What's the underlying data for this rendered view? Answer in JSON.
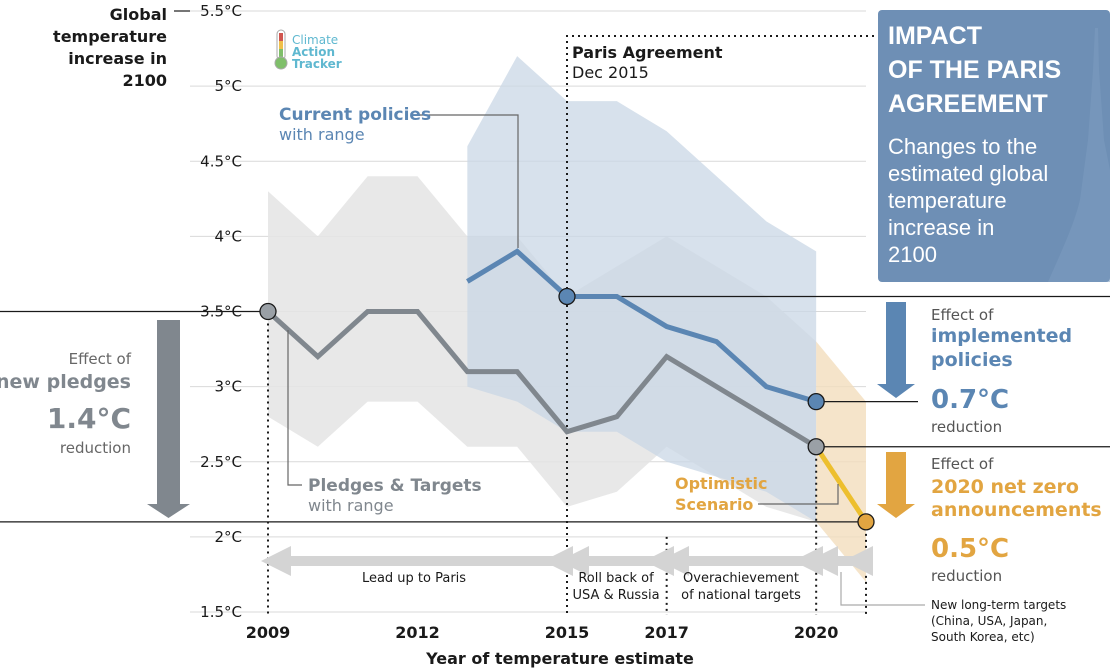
{
  "colors": {
    "blue": "#5b86b3",
    "blue_band": "#c9d7e6",
    "grey": "#80878e",
    "grey_band": "#e4e4e4",
    "orange": "#e2a541",
    "orange_line": "#edbf2e",
    "orange_band": "#f2ddbd",
    "box_bg": "#6e8fb5",
    "period_bar": "#d4d4d4"
  },
  "logo": {
    "line1": "Climate",
    "line2": "Action",
    "line3": "Tracker"
  },
  "title_box": {
    "title_lines": [
      "IMPACT",
      "OF THE PARIS",
      "AGREEMENT"
    ],
    "subtitle_lines": [
      "Changes to the",
      "estimated global",
      "temperature",
      "increase in",
      "2100"
    ]
  },
  "paris_label": {
    "title": "Paris Agreement",
    "date": "Dec 2015"
  },
  "series_labels": {
    "current_title": "Current policies",
    "current_sub": "with range",
    "pledges_title": "Pledges & Targets",
    "pledges_sub": "with range",
    "optimistic_line1": "Optimistic",
    "optimistic_line2": "Scenario"
  },
  "effects": {
    "pledges": {
      "pre": "Effect of",
      "title": "new pledges",
      "value": "1.4°C",
      "post": "reduction"
    },
    "policies": {
      "pre": "Effect of",
      "title_lines": [
        "implemented",
        "policies"
      ],
      "value": "0.7°C",
      "post": "reduction"
    },
    "netzero": {
      "pre": "Effect of",
      "title_lines": [
        "2020 net zero",
        "announcements"
      ],
      "value": "0.5°C",
      "post": "reduction"
    }
  },
  "periods": [
    {
      "lines": [
        "Lead up to Paris"
      ]
    },
    {
      "lines": [
        "Roll back of",
        "USA & Russia"
      ]
    },
    {
      "lines": [
        "Overachievement",
        "of national targets"
      ]
    }
  ],
  "new_targets_note": [
    "New long-term targets",
    "(China, USA, Japan,",
    "South Korea, etc)"
  ],
  "chart_data": {
    "type": "line",
    "title": "",
    "xlabel": "Year of temperature estimate",
    "ylabel_lines": [
      "Global",
      "temperature",
      "increase in",
      "2100"
    ],
    "xlim": [
      2009,
      2021
    ],
    "ylim": [
      1.5,
      5.5
    ],
    "x_ticks": [
      {
        "value": 2009,
        "label": "2009"
      },
      {
        "value": 2012,
        "label": "2012"
      },
      {
        "value": 2015,
        "label": "2015"
      },
      {
        "value": 2017,
        "label": "2017"
      },
      {
        "value": 2020,
        "label": "2020"
      }
    ],
    "y_ticks": [
      {
        "value": 1.5,
        "label": "1.5°C"
      },
      {
        "value": 2.0,
        "label": "2°C"
      },
      {
        "value": 2.5,
        "label": "2.5°C"
      },
      {
        "value": 3.0,
        "label": "3°C"
      },
      {
        "value": 3.5,
        "label": "3.5°C"
      },
      {
        "value": 4.0,
        "label": "4°C"
      },
      {
        "value": 4.5,
        "label": "4.5°C"
      },
      {
        "value": 5.0,
        "label": "5°C"
      },
      {
        "value": 5.5,
        "label": "5.5°C"
      }
    ],
    "grid": true,
    "series": [
      {
        "name": "Pledges & Targets",
        "x": [
          2009,
          2010,
          2011,
          2012,
          2013,
          2014,
          2015,
          2016,
          2017,
          2018,
          2019,
          2020
        ],
        "y": [
          3.5,
          3.2,
          3.5,
          3.5,
          3.1,
          3.1,
          2.7,
          2.8,
          3.2,
          3.0,
          2.8,
          2.6
        ],
        "range_upper": [
          4.3,
          4.0,
          4.4,
          4.4,
          4.0,
          4.0,
          3.6,
          3.8,
          4.0,
          3.8,
          3.6,
          3.3
        ],
        "range_lower": [
          2.8,
          2.6,
          2.9,
          2.9,
          2.6,
          2.6,
          2.2,
          2.3,
          2.6,
          2.4,
          2.2,
          2.1
        ]
      },
      {
        "name": "Current policies",
        "x": [
          2013,
          2014,
          2015,
          2016,
          2017,
          2018,
          2019,
          2020
        ],
        "y": [
          3.7,
          3.9,
          3.6,
          3.6,
          3.4,
          3.3,
          3.0,
          2.9
        ],
        "range_upper": [
          4.6,
          5.2,
          4.9,
          4.9,
          4.7,
          4.4,
          4.1,
          3.9
        ],
        "range_lower": [
          3.0,
          2.9,
          2.7,
          2.7,
          2.5,
          2.4,
          2.3,
          2.1
        ]
      },
      {
        "name": "Optimistic Scenario",
        "x": [
          2020,
          2021
        ],
        "y": [
          2.6,
          2.1
        ],
        "range_upper": [
          3.3,
          2.9
        ],
        "range_lower": [
          2.1,
          1.7
        ]
      }
    ],
    "markers": [
      {
        "x": 2009,
        "y": 3.5,
        "series": "Pledges & Targets"
      },
      {
        "x": 2015,
        "y": 3.6,
        "series": "Current policies"
      },
      {
        "x": 2020,
        "y": 2.9,
        "series": "Current policies"
      },
      {
        "x": 2020,
        "y": 2.6,
        "series": "Pledges & Targets"
      },
      {
        "x": 2021,
        "y": 2.1,
        "series": "Optimistic Scenario"
      }
    ],
    "reference_lines": [
      3.5,
      3.6,
      2.9,
      2.6,
      2.1
    ],
    "events": [
      {
        "x": 2015,
        "label": "Paris Agreement"
      }
    ]
  }
}
